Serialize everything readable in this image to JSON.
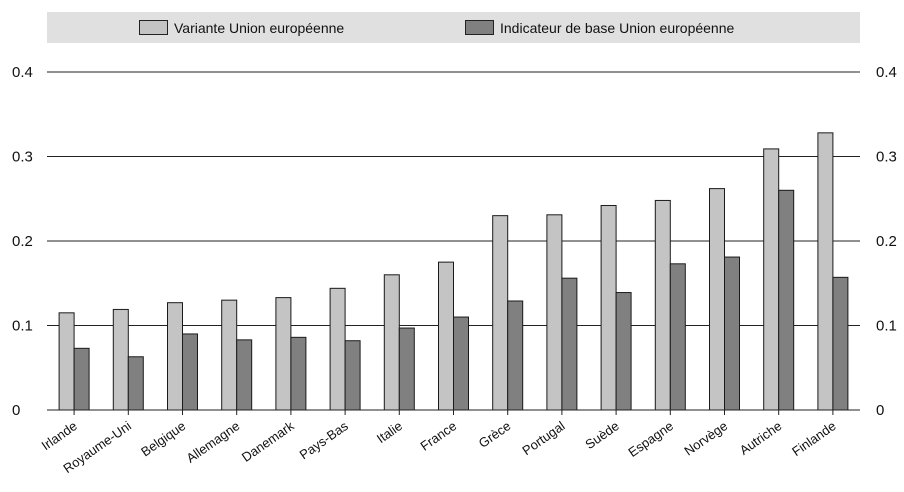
{
  "chart_data": {
    "type": "bar",
    "categories": [
      "Irlande",
      "Royaume-Uni",
      "Belgique",
      "Allemagne",
      "Danemark",
      "Pays-Bas",
      "Italie",
      "France",
      "Grèce",
      "Portugal",
      "Suède",
      "Espagne",
      "Norvège",
      "Autriche",
      "Finlande"
    ],
    "series": [
      {
        "name": "Variante Union européenne",
        "color": "#c4c4c4",
        "values": [
          0.115,
          0.119,
          0.127,
          0.13,
          0.133,
          0.144,
          0.16,
          0.175,
          0.23,
          0.231,
          0.242,
          0.248,
          0.262,
          0.309,
          0.328
        ]
      },
      {
        "name": "Indicateur de base Union européenne",
        "color": "#808080",
        "values": [
          0.073,
          0.063,
          0.09,
          0.083,
          0.086,
          0.082,
          0.097,
          0.11,
          0.129,
          0.156,
          0.139,
          0.173,
          0.181,
          0.26,
          0.157
        ]
      }
    ],
    "ylim": [
      0,
      0.4
    ],
    "yticks": [
      "0",
      "0.1",
      "0.2",
      "0.3",
      "0.4"
    ],
    "ytick_values": [
      0,
      0.1,
      0.2,
      0.3,
      0.4
    ],
    "grid": true,
    "legend_position": "top"
  }
}
